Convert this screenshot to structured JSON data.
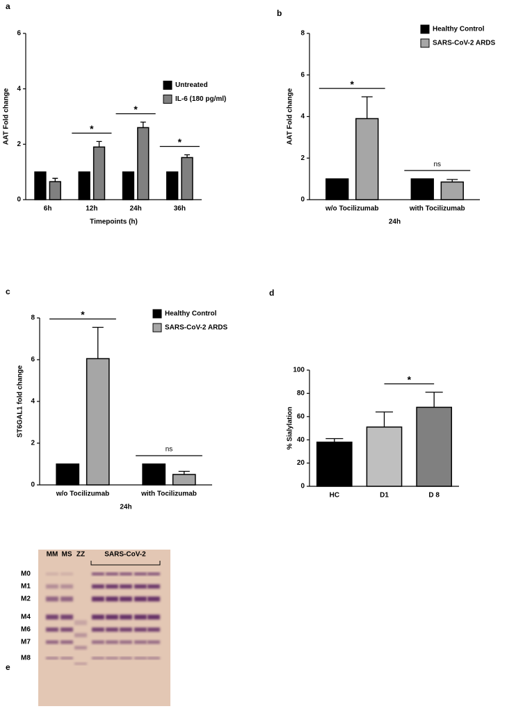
{
  "chart_data": [
    {
      "type": "bar",
      "panel": "a",
      "categories": [
        "6h",
        "12h",
        "24h",
        "36h"
      ],
      "series": [
        {
          "name": "Untreated",
          "color": "#000000",
          "values": [
            1,
            1,
            1,
            1
          ]
        },
        {
          "name": "IL-6 (180 pg/ml)",
          "color": "#808080",
          "values": [
            0.65,
            1.9,
            2.6,
            1.52
          ],
          "errors": [
            0.12,
            0.2,
            0.2,
            0.1
          ]
        }
      ],
      "ylim": [
        0,
        6
      ],
      "yticks": [
        0,
        2,
        4,
        6
      ],
      "ylabel": "AAT  Fold change",
      "xlabel": "Timepoints (h)",
      "legend": "center right",
      "annotations": [
        {
          "text": "*",
          "category": "12h"
        },
        {
          "text": "*",
          "category": "24h"
        },
        {
          "text": "*",
          "category": "36h"
        }
      ]
    },
    {
      "type": "bar",
      "panel": "b",
      "categories": [
        "w/o Tocilizumab",
        "with Tocilizumab"
      ],
      "series": [
        {
          "name": "Healthy Control",
          "color": "#000000",
          "values": [
            1,
            1
          ]
        },
        {
          "name": "SARS-CoV-2  ARDS",
          "color": "#a6a6a6",
          "values": [
            3.9,
            0.85
          ],
          "errors": [
            1.05,
            0.12
          ]
        }
      ],
      "ylim": [
        0,
        8
      ],
      "yticks": [
        0,
        2,
        4,
        6,
        8
      ],
      "ylabel": "AAT Fold change",
      "xlabel": "24h",
      "legend": "upper right",
      "annotations": [
        {
          "text": "*",
          "category": "w/o Tocilizumab"
        },
        {
          "text": "ns",
          "category": "with Tocilizumab"
        }
      ]
    },
    {
      "type": "bar",
      "panel": "c",
      "categories": [
        "w/o Tocilizumab",
        "with Tocilizumab"
      ],
      "series": [
        {
          "name": "Healthy Control",
          "color": "#000000",
          "values": [
            1,
            1
          ]
        },
        {
          "name": "SARS-CoV-2  ARDS",
          "color": "#a6a6a6",
          "values": [
            6.05,
            0.5
          ],
          "errors": [
            1.5,
            0.15
          ]
        }
      ],
      "ylim": [
        0,
        8
      ],
      "yticks": [
        0,
        2,
        4,
        6,
        8
      ],
      "ylabel": "ST6GAL1 fold change",
      "xlabel": "24h",
      "legend": "upper right",
      "annotations": [
        {
          "text": "*",
          "category": "w/o Tocilizumab"
        },
        {
          "text": "ns",
          "category": "with Tocilizumab"
        }
      ]
    },
    {
      "type": "bar",
      "panel": "d",
      "categories": [
        "HC",
        "D1",
        "D 8"
      ],
      "values": [
        38,
        51,
        68
      ],
      "errors": [
        3,
        13,
        13
      ],
      "colors": [
        "#000000",
        "#bfbfbf",
        "#808080"
      ],
      "ylim": [
        0,
        100
      ],
      "yticks": [
        0,
        20,
        40,
        60,
        80,
        100
      ],
      "ylabel": "% Sialylation",
      "annotations": [
        {
          "text": "*",
          "categories": [
            "D1",
            "D 8"
          ]
        }
      ]
    }
  ],
  "gel": {
    "panel": "e",
    "lanes": [
      "MM",
      "MS",
      "ZZ"
    ],
    "group": "SARS-CoV-2",
    "bands": [
      "M0",
      "M1",
      "M2",
      "M4",
      "M6",
      "M7",
      "M8"
    ]
  }
}
